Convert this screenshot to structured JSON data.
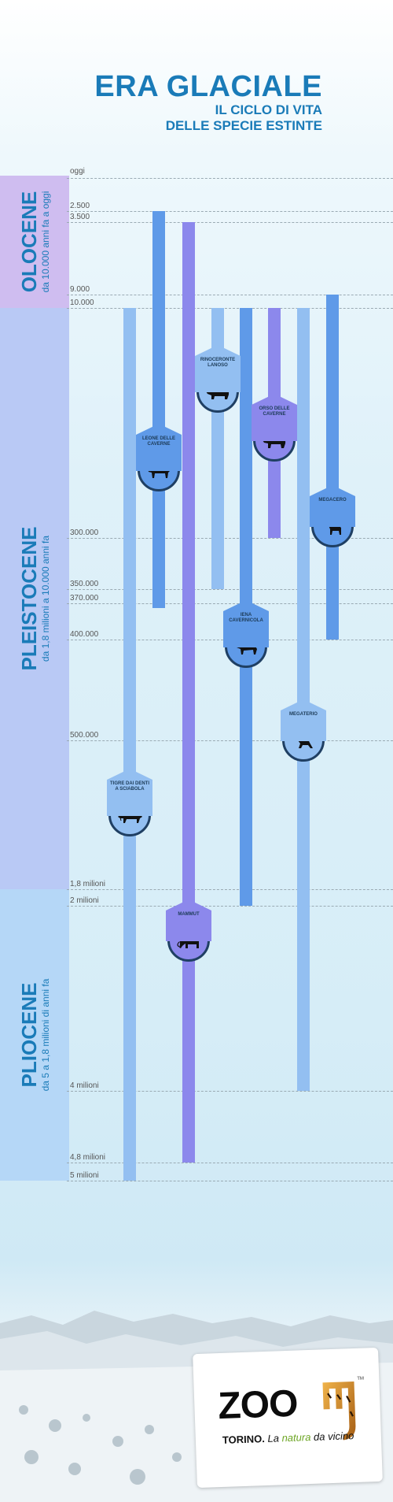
{
  "header": {
    "title": "ERA GLACIALE",
    "subtitle_line1": "IL CICLO DI VITA",
    "subtitle_line2": "DELLE SPECIE ESTINTE"
  },
  "eras": {
    "olocene": {
      "name": "OLOCENE",
      "sub": "da 10.000 anni fa a oggi",
      "color": "#cfbdf0"
    },
    "pleistocene": {
      "name": "PLEISTOCENE",
      "sub": "da 1,8 milioni a 10.000 anni fa",
      "color": "#b9c9f5"
    },
    "pliocene": {
      "name": "PLIOCENE",
      "sub": "da 5 a 1,8 milioni di anni fa",
      "color": "#b5d7f7"
    }
  },
  "ticks": {
    "t_oggi": "oggi",
    "t_2500": "2.500",
    "t_3500": "3.500",
    "t_9000": "9.000",
    "t_10000": "10.000",
    "t_300000": "300.000",
    "t_350000": "350.000",
    "t_370000": "370.000",
    "t_400000": "400.000",
    "t_500000": "500.000",
    "t_1_8m": "1,8 milioni",
    "t_2m": "2 milioni",
    "t_4m": "4 milioni",
    "t_4_8m": "4,8 milioni",
    "t_5m": "5 milioni"
  },
  "species": {
    "tigre": {
      "label": "TIGRE DAI DENTI A SCIABOLA",
      "icon": "sabertooth-icon",
      "color": "#93bff1"
    },
    "leone": {
      "label": "LEONE DELLE CAVERNE",
      "icon": "lion-icon",
      "color": "#5f9ae8"
    },
    "mammut": {
      "label": "MAMMUT",
      "icon": "mammoth-icon",
      "color": "#8c88ec"
    },
    "rinoceronte": {
      "label": "RINOCERONTE LANOSO",
      "icon": "rhino-icon",
      "color": "#93bff1"
    },
    "iena": {
      "label": "IENA CAVERNICOLA",
      "icon": "hyena-icon",
      "color": "#5f9ae8"
    },
    "orso": {
      "label": "ORSO DELLE CAVERNE",
      "icon": "bear-icon",
      "color": "#8c88ec"
    },
    "megaterio": {
      "label": "MEGATERIO",
      "icon": "sloth-icon",
      "color": "#93bff1"
    },
    "megacero": {
      "label": "MEGACERO",
      "icon": "deer-icon",
      "color": "#5f9ae8"
    }
  },
  "logo": {
    "word": "ZOO",
    "tag_city": "TORINO.",
    "tag_la": "La",
    "tag_natura": "natura",
    "tag_rest": "da vicino",
    "tm": "TM",
    "text_color": "#0c0c0c",
    "accent": "#6da524"
  }
}
